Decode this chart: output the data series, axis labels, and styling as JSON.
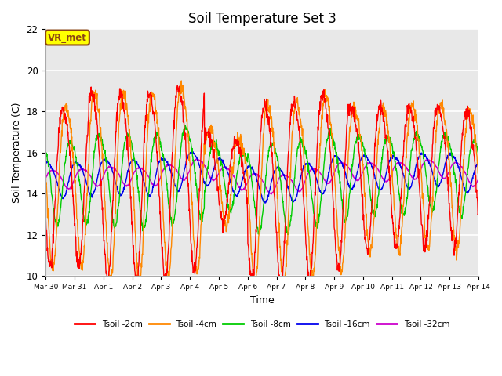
{
  "title": "Soil Temperature Set 3",
  "xlabel": "Time",
  "ylabel": "Soil Temperature (C)",
  "ylim": [
    10,
    22
  ],
  "bg_color": "#e8e8e8",
  "annotation_text": "VR_met",
  "annotation_box_color": "#ffff00",
  "annotation_border_color": "#8B4513",
  "series_colors": [
    "#ff0000",
    "#ff8800",
    "#00cc00",
    "#0000ee",
    "#cc00cc"
  ],
  "series_labels": [
    "Tsoil -2cm",
    "Tsoil -4cm",
    "Tsoil -8cm",
    "Tsoil -16cm",
    "Tsoil -32cm"
  ],
  "tick_labels": [
    "Mar 30",
    "Mar 31",
    "Apr 1",
    "Apr 2",
    "Apr 3",
    "Apr 4",
    "Apr 5",
    "Apr 6",
    "Apr 7",
    "Apr 8",
    "Apr 9",
    "Apr 10",
    "Apr 11",
    "Apr 12",
    "Apr 13",
    "Apr 14"
  ],
  "n_points": 1440,
  "days": 15
}
